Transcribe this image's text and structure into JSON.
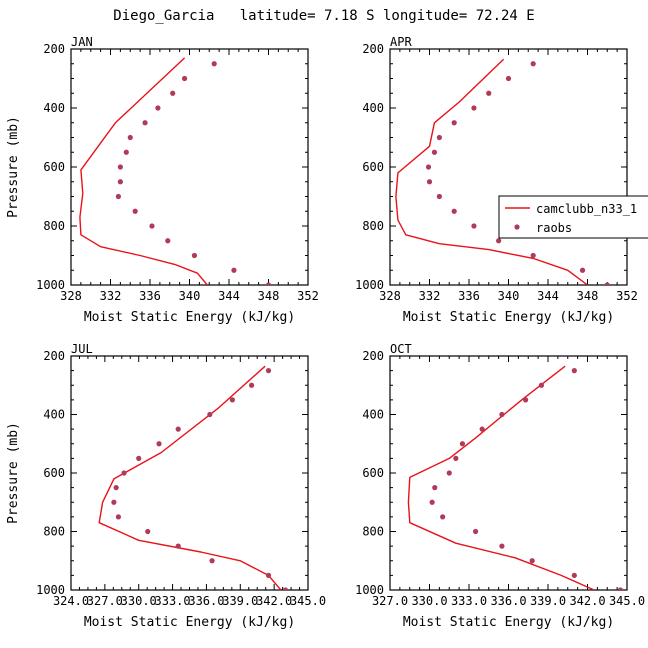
{
  "title": "Diego_Garcia   latitude= 7.18 S longitude= 72.24 E",
  "colors": {
    "model": "#e8121a",
    "obs": "#b03a5a",
    "axis": "#000000"
  },
  "legend": {
    "model": "camclubb_n33_1",
    "obs": "raobs"
  },
  "chart_data": [
    {
      "type": "line",
      "panel": "JAN",
      "xlabel": "Moist Static Energy (kJ/kg)",
      "ylabel": "Pressure (mb)",
      "xlim": [
        328,
        352
      ],
      "ylim": [
        1000,
        200
      ],
      "xticks": [
        328,
        332,
        336,
        340,
        344,
        348,
        352
      ],
      "xticklabels": [
        "328",
        "332",
        "336",
        "340",
        "344",
        "348",
        "352"
      ],
      "yticks": [
        200,
        400,
        600,
        800,
        1000
      ],
      "yticklabels": [
        "200",
        "400",
        "600",
        "800",
        "1000"
      ],
      "series": [
        {
          "name": "camclubb_n33_1",
          "kind": "line",
          "x": [
            339.5,
            332.5,
            329.0,
            329.2,
            328.9,
            329.0,
            331.0,
            335.0,
            338.5,
            340.8,
            341.8
          ],
          "y": [
            230,
            450,
            610,
            690,
            770,
            830,
            870,
            900,
            930,
            960,
            1000
          ]
        },
        {
          "name": "raobs",
          "kind": "markers",
          "x": [
            342.5,
            339.5,
            338.3,
            336.8,
            335.5,
            334.0,
            333.6,
            333.0,
            333.0,
            332.8,
            334.5,
            336.2,
            337.8,
            340.5,
            344.5,
            348.0
          ],
          "y": [
            250,
            300,
            350,
            400,
            450,
            500,
            550,
            600,
            650,
            700,
            750,
            800,
            850,
            900,
            950,
            1000
          ]
        }
      ]
    },
    {
      "type": "line",
      "panel": "APR",
      "xlabel": "Moist Static Energy (kJ/kg)",
      "ylabel": "",
      "xlim": [
        328,
        352
      ],
      "ylim": [
        1000,
        200
      ],
      "xticks": [
        328,
        332,
        336,
        340,
        344,
        348,
        352
      ],
      "xticklabels": [
        "328",
        "332",
        "336",
        "340",
        "344",
        "348",
        "352"
      ],
      "yticks": [
        200,
        400,
        600,
        800,
        1000
      ],
      "yticklabels": [
        "200",
        "400",
        "600",
        "800",
        "1000"
      ],
      "series": [
        {
          "name": "camclubb_n33_1",
          "kind": "line",
          "x": [
            339.5,
            335.0,
            332.5,
            332.0,
            328.8,
            328.6,
            328.8,
            329.6,
            333.0,
            338.0,
            342.5,
            346.0,
            348.0
          ],
          "y": [
            235,
            380,
            450,
            530,
            620,
            700,
            780,
            830,
            860,
            880,
            910,
            950,
            1000
          ]
        },
        {
          "name": "raobs",
          "kind": "markers",
          "x": [
            342.5,
            340.0,
            338.0,
            336.5,
            334.5,
            333.0,
            332.5,
            331.9,
            332.0,
            333.0,
            334.5,
            336.5,
            339.0,
            342.5,
            347.5,
            350.0
          ],
          "y": [
            250,
            300,
            350,
            400,
            450,
            500,
            550,
            600,
            650,
            700,
            750,
            800,
            850,
            900,
            950,
            1000
          ]
        }
      ]
    },
    {
      "type": "line",
      "panel": "JUL",
      "xlabel": "Moist Static Energy (kJ/kg)",
      "ylabel": "Pressure (mb)",
      "xlim": [
        324.0,
        345.0
      ],
      "ylim": [
        1000,
        200
      ],
      "xticks": [
        324.0,
        327.0,
        330.0,
        333.0,
        336.0,
        339.0,
        342.0,
        345.0
      ],
      "xticklabels": [
        "324.0",
        "327.0",
        "330.0",
        "333.0",
        "336.0",
        "339.0",
        "342.0",
        "345.0"
      ],
      "yticks": [
        200,
        400,
        600,
        800,
        1000
      ],
      "yticklabels": [
        "200",
        "400",
        "600",
        "800",
        "1000"
      ],
      "series": [
        {
          "name": "camclubb_n33_1",
          "kind": "line",
          "x": [
            341.2,
            337.0,
            332.0,
            327.8,
            326.8,
            326.5,
            330.0,
            335.5,
            339.0,
            341.5,
            342.6
          ],
          "y": [
            235,
            380,
            530,
            620,
            700,
            770,
            830,
            870,
            900,
            950,
            1000
          ]
        },
        {
          "name": "raobs",
          "kind": "markers",
          "x": [
            341.5,
            340.0,
            338.3,
            336.3,
            333.5,
            331.8,
            330.0,
            328.7,
            328.0,
            327.8,
            328.2,
            330.8,
            333.5,
            336.5,
            341.5,
            343.0
          ],
          "y": [
            250,
            300,
            350,
            400,
            450,
            500,
            550,
            600,
            650,
            700,
            750,
            800,
            850,
            900,
            950,
            1000
          ]
        }
      ]
    },
    {
      "type": "line",
      "panel": "OCT",
      "xlabel": "Moist Static Energy (kJ/kg)",
      "ylabel": "",
      "xlim": [
        327.0,
        345.0
      ],
      "ylim": [
        1000,
        200
      ],
      "xticks": [
        327.0,
        330.0,
        333.0,
        336.0,
        339.0,
        342.0,
        345.0
      ],
      "xticklabels": [
        "327.0",
        "330.0",
        "333.0",
        "336.0",
        "339.0",
        "342.0",
        "345.0"
      ],
      "yticks": [
        200,
        400,
        600,
        800,
        1000
      ],
      "yticklabels": [
        "200",
        "400",
        "600",
        "800",
        "1000"
      ],
      "series": [
        {
          "name": "camclubb_n33_1",
          "kind": "line",
          "x": [
            340.3,
            337.0,
            333.5,
            331.5,
            328.5,
            328.4,
            328.5,
            332.0,
            336.5,
            340.0,
            342.5
          ],
          "y": [
            235,
            350,
            480,
            550,
            615,
            700,
            770,
            840,
            890,
            950,
            1000
          ]
        },
        {
          "name": "raobs",
          "kind": "markers",
          "x": [
            341.0,
            338.5,
            337.3,
            335.5,
            334.0,
            332.5,
            332.0,
            331.5,
            330.4,
            330.2,
            331.0,
            333.5,
            335.5,
            337.8,
            341.0,
            344.5
          ],
          "y": [
            250,
            300,
            350,
            400,
            450,
            500,
            550,
            600,
            650,
            700,
            750,
            800,
            850,
            900,
            950,
            1000
          ]
        }
      ]
    }
  ]
}
